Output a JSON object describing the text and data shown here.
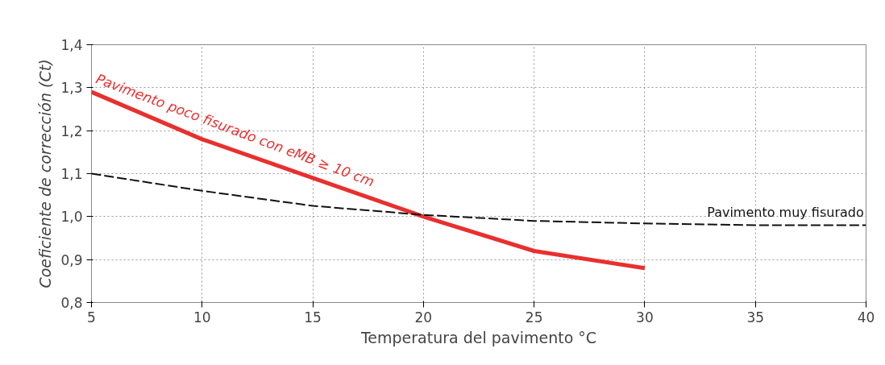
{
  "chart_data": {
    "type": "line",
    "xlabel": "Temperatura del pavimento °C",
    "ylabel": "Coeficiente de corrección (Ct)",
    "xlim": [
      5,
      40
    ],
    "xticks": [
      5,
      10,
      15,
      20,
      25,
      30,
      35,
      40
    ],
    "ylim": [
      0.8,
      1.4
    ],
    "yticks": [
      {
        "value": 0.8,
        "label": "0,8"
      },
      {
        "value": 0.9,
        "label": "0,9"
      },
      {
        "value": 1.0,
        "label": "1,0"
      },
      {
        "value": 1.1,
        "label": "1,1"
      },
      {
        "value": 1.2,
        "label": "1,2"
      },
      {
        "value": 1.3,
        "label": "1,3"
      },
      {
        "value": 1.4,
        "label": "1,4"
      }
    ],
    "grid": true,
    "marker": "none",
    "series": [
      {
        "name": "Pavimento poco fisurado con eMB ≥ 10 cm",
        "color": "#e8302f",
        "line_style": "solid",
        "x": [
          5,
          10,
          15,
          20,
          25,
          30
        ],
        "values": [
          1.29,
          1.18,
          1.09,
          1.0,
          0.92,
          0.88
        ]
      },
      {
        "name": "Pavimento muy fisurado",
        "color": "#111111",
        "line_style": "dashed",
        "x": [
          5,
          10,
          15,
          20,
          25,
          30,
          35,
          40
        ],
        "values": [
          1.1,
          1.06,
          1.025,
          1.004,
          0.99,
          0.984,
          0.98,
          0.98
        ]
      }
    ]
  }
}
